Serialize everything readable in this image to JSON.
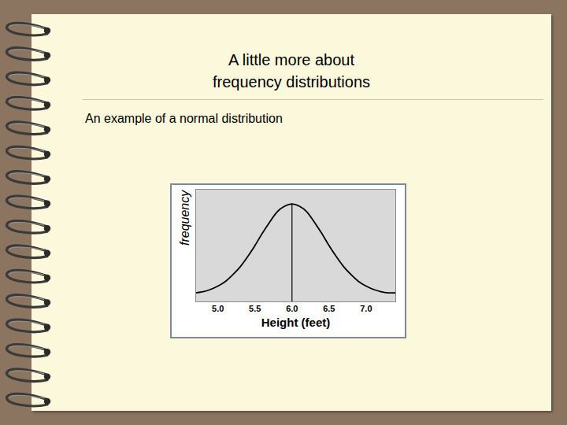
{
  "slide": {
    "title_lines": [
      "A little more about",
      "frequency distributions"
    ],
    "text": "An example of a normal distribution"
  },
  "chart_data": {
    "type": "line",
    "x_label": "Height (feet)",
    "y_label": "frequency",
    "x": [
      4.7,
      4.8,
      4.9,
      5.0,
      5.1,
      5.2,
      5.3,
      5.4,
      5.5,
      5.6,
      5.7,
      5.8,
      5.9,
      6.0,
      6.1,
      6.2,
      6.3,
      6.4,
      6.5,
      6.6,
      6.7,
      6.8,
      6.9,
      7.0,
      7.1,
      7.2,
      7.3,
      7.4
    ],
    "values": [
      8,
      9,
      11,
      14,
      18,
      24,
      31,
      40,
      50,
      61,
      71,
      80,
      85,
      87,
      85,
      80,
      71,
      61,
      50,
      40,
      31,
      24,
      18,
      14,
      11,
      9,
      8,
      8
    ],
    "color": "#000000",
    "xlim": [
      4.7,
      7.4
    ],
    "xticks": [
      {
        "value": 5,
        "label": "5.0"
      },
      {
        "value": 5.5,
        "label": "5.5"
      },
      {
        "value": 6,
        "label": "6.0"
      },
      {
        "value": 6.5,
        "label": "6.5"
      },
      {
        "value": 7,
        "label": "7.0"
      }
    ],
    "ylim": [
      0,
      100
    ],
    "grid": false,
    "tick_labels": "x",
    "reference_x": 6
  }
}
